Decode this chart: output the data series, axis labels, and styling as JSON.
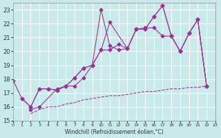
{
  "xlabel": "Windchill (Refroidissement éolien,°C)",
  "background_color": "#c8eaea",
  "grid_color": "#ffffff",
  "line_color": "#993399",
  "xlim": [
    0,
    23
  ],
  "ylim": [
    15,
    23.5
  ],
  "yticks": [
    15,
    16,
    17,
    18,
    19,
    20,
    21,
    22,
    23
  ],
  "xticks": [
    0,
    1,
    2,
    3,
    4,
    5,
    6,
    7,
    8,
    9,
    10,
    11,
    12,
    13,
    14,
    15,
    16,
    17,
    18,
    19,
    20,
    21,
    22,
    23
  ],
  "series": [
    {
      "x": [
        0,
        1,
        2,
        3,
        4,
        5,
        6,
        7,
        8,
        9,
        10,
        11,
        12,
        13,
        14,
        15,
        16,
        17,
        18,
        19,
        20,
        21,
        22
      ],
      "y": [
        17.9,
        16.6,
        16.0,
        17.3,
        17.3,
        17.2,
        17.5,
        18.1,
        18.8,
        19.0,
        23.0,
        20.4,
        20.1,
        20.2,
        21.6,
        21.6,
        22.5,
        23.3,
        21.1,
        20.0,
        21.3,
        22.3,
        17.5
      ],
      "style": "-",
      "marker": "D",
      "markersize": 2.5
    },
    {
      "x": [
        1,
        2,
        3,
        4,
        5,
        6,
        7,
        8,
        9,
        10,
        11,
        12,
        13,
        14,
        15,
        16,
        17,
        18,
        19,
        20,
        21,
        22
      ],
      "y": [
        16.6,
        16.0,
        17.3,
        17.3,
        17.2,
        17.5,
        18.1,
        18.8,
        19.0,
        20.1,
        20.1,
        20.5,
        20.2,
        21.6,
        21.6,
        22.5,
        23.3,
        21.1,
        20.0,
        21.3,
        22.3,
        17.5
      ],
      "style": "-",
      "marker": "D",
      "markersize": 2.5
    },
    {
      "x": [
        2,
        3,
        5,
        6,
        7,
        8,
        9,
        10,
        11,
        13,
        14,
        15,
        16,
        17,
        18,
        19,
        20,
        21,
        22
      ],
      "y": [
        15.8,
        16.0,
        17.3,
        17.5,
        17.5,
        18.1,
        19.0,
        20.1,
        22.1,
        20.2,
        21.6,
        21.7,
        21.7,
        21.1,
        21.1,
        20.0,
        21.3,
        22.3,
        17.5
      ],
      "style": "-",
      "marker": "D",
      "markersize": 2.5
    },
    {
      "x": [
        2,
        3,
        4,
        5,
        6,
        7,
        8,
        9,
        10,
        11,
        12,
        13,
        14,
        15,
        16,
        17,
        18,
        19,
        20,
        21,
        22
      ],
      "y": [
        15.5,
        15.8,
        16.0,
        16.0,
        16.2,
        16.3,
        16.5,
        16.6,
        16.7,
        16.8,
        16.8,
        16.9,
        17.0,
        17.1,
        17.1,
        17.2,
        17.3,
        17.3,
        17.4,
        17.4,
        17.5
      ],
      "style": "--",
      "marker": null,
      "markersize": 0
    }
  ]
}
